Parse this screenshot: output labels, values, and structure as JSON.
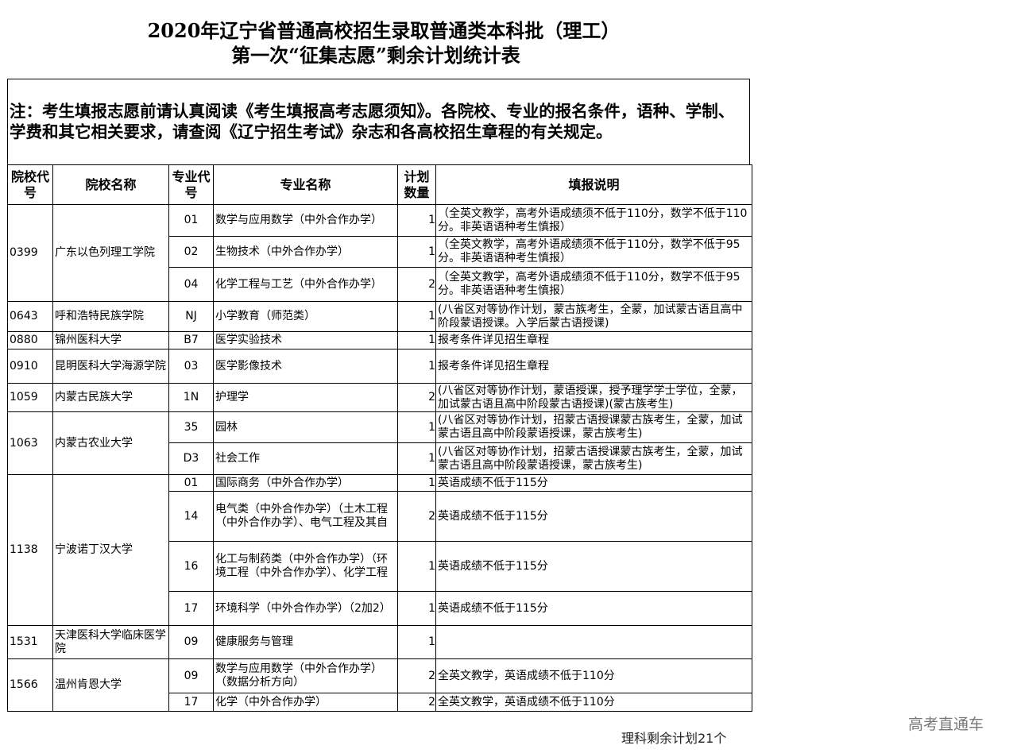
{
  "title": {
    "line1": "2020年辽宁省普通高校招生录取普通类本科批（理工）",
    "line2": "第一次“征集志愿”剩余计划统计表"
  },
  "note": "注：考生填报志愿前请认真阅读《考生填报高考志愿须知》。各院校、专业的报名条件，语种、学制、学费和其它相关要求，请查阅《辽宁招生考试》杂志和各高校招生章程的有关规定。",
  "headers": [
    "院校代号",
    "院校名称",
    "专业代号",
    "专业名称",
    "计划数量",
    "填报说明"
  ],
  "schools": [
    {
      "code": "0399",
      "name": "广东以色列理工学院",
      "majors": [
        {
          "code": "01",
          "name": "数学与应用数学（中外合作办学）",
          "plan": "1",
          "remark": "（全英文教学，高考外语成绩须不低于110分，数学不低于110分。非英语语种考生慎报）"
        },
        {
          "code": "02",
          "name": "生物技术（中外合作办学）",
          "plan": "1",
          "remark": "（全英文教学，高考外语成绩须不低于110分，数学不低于95分。非英语语种考生慎报）"
        },
        {
          "code": "04",
          "name": "化学工程与工艺（中外合作办学）",
          "plan": "2",
          "remark": "（全英文教学，高考外语成绩须不低于110分，数学不低于95分。非英语语种考生慎报）"
        }
      ]
    },
    {
      "code": "0643",
      "name": "呼和浩特民族学院",
      "majors": [
        {
          "code": "NJ",
          "name": "小学教育（师范类）",
          "plan": "1",
          "remark": "(八省区对等协作计划，蒙古族考生，全蒙，加试蒙古语且高中阶段蒙语授课。入学后蒙古语授课)"
        }
      ]
    },
    {
      "code": "0880",
      "name": "锦州医科大学",
      "majors": [
        {
          "code": "B7",
          "name": "医学实验技术",
          "plan": "1",
          "remark": "报考条件详见招生章程"
        }
      ]
    },
    {
      "code": "0910",
      "name": "昆明医科大学海源学院",
      "majors": [
        {
          "code": "03",
          "name": "医学影像技术",
          "plan": "1",
          "remark": "报考条件详见招生章程"
        }
      ]
    },
    {
      "code": "1059",
      "name": "内蒙古民族大学",
      "majors": [
        {
          "code": "1N",
          "name": "护理学",
          "plan": "2",
          "remark": "(八省区对等协作计划，蒙语授课，授予理学学士学位，全蒙，加试蒙古语且高中阶段蒙古语授课)(蒙古族考生)"
        }
      ]
    },
    {
      "code": "1063",
      "name": "内蒙古农业大学",
      "majors": [
        {
          "code": "35",
          "name": "园林",
          "plan": "1",
          "remark": "(八省区对等协作计划，招蒙古语授课蒙古族考生，全蒙，加试蒙古语且高中阶段蒙语授课，蒙古族考生)"
        },
        {
          "code": "D3",
          "name": "社会工作",
          "plan": "1",
          "remark": "(八省区对等协作计划，招蒙古语授课蒙古族考生，全蒙，加试蒙古语且高中阶段蒙语授课，蒙古族考生)"
        }
      ]
    },
    {
      "code": "1138",
      "name": "宁波诺丁汉大学",
      "majors": [
        {
          "code": "01",
          "name": "国际商务（中外合作办学）",
          "plan": "1",
          "remark": "英语成绩不低于115分"
        },
        {
          "code": "14",
          "name": "电气类（中外合作办学）（土木工程（中外合作办学）、电气工程及其自",
          "plan": "2",
          "remark": "英语成绩不低于115分"
        },
        {
          "code": "16",
          "name": "化工与制药类（中外合作办学）（环境工程（中外合作办学）、化学工程",
          "plan": "1",
          "remark": "英语成绩不低于115分"
        },
        {
          "code": "17",
          "name": "环境科学（中外合作办学）（2加2）",
          "plan": "1",
          "remark": "英语成绩不低于115分"
        }
      ]
    },
    {
      "code": "1531",
      "name": "天津医科大学临床医学院",
      "majors": [
        {
          "code": "09",
          "name": "健康服务与管理",
          "plan": "1",
          "remark": ""
        }
      ]
    },
    {
      "code": "1566",
      "name": "温州肯恩大学",
      "majors": [
        {
          "code": "09",
          "name": "数学与应用数学（中外合作办学）（数据分析方向）",
          "plan": "2",
          "remark": "全英文教学，英语成绩不低于110分"
        },
        {
          "code": "17",
          "name": "化学（中外合作办学）",
          "plan": "2",
          "remark": "全英文教学，英语成绩不低于110分"
        }
      ]
    }
  ],
  "footer": "理科剩余计划21个",
  "watermark": "高考直通车"
}
